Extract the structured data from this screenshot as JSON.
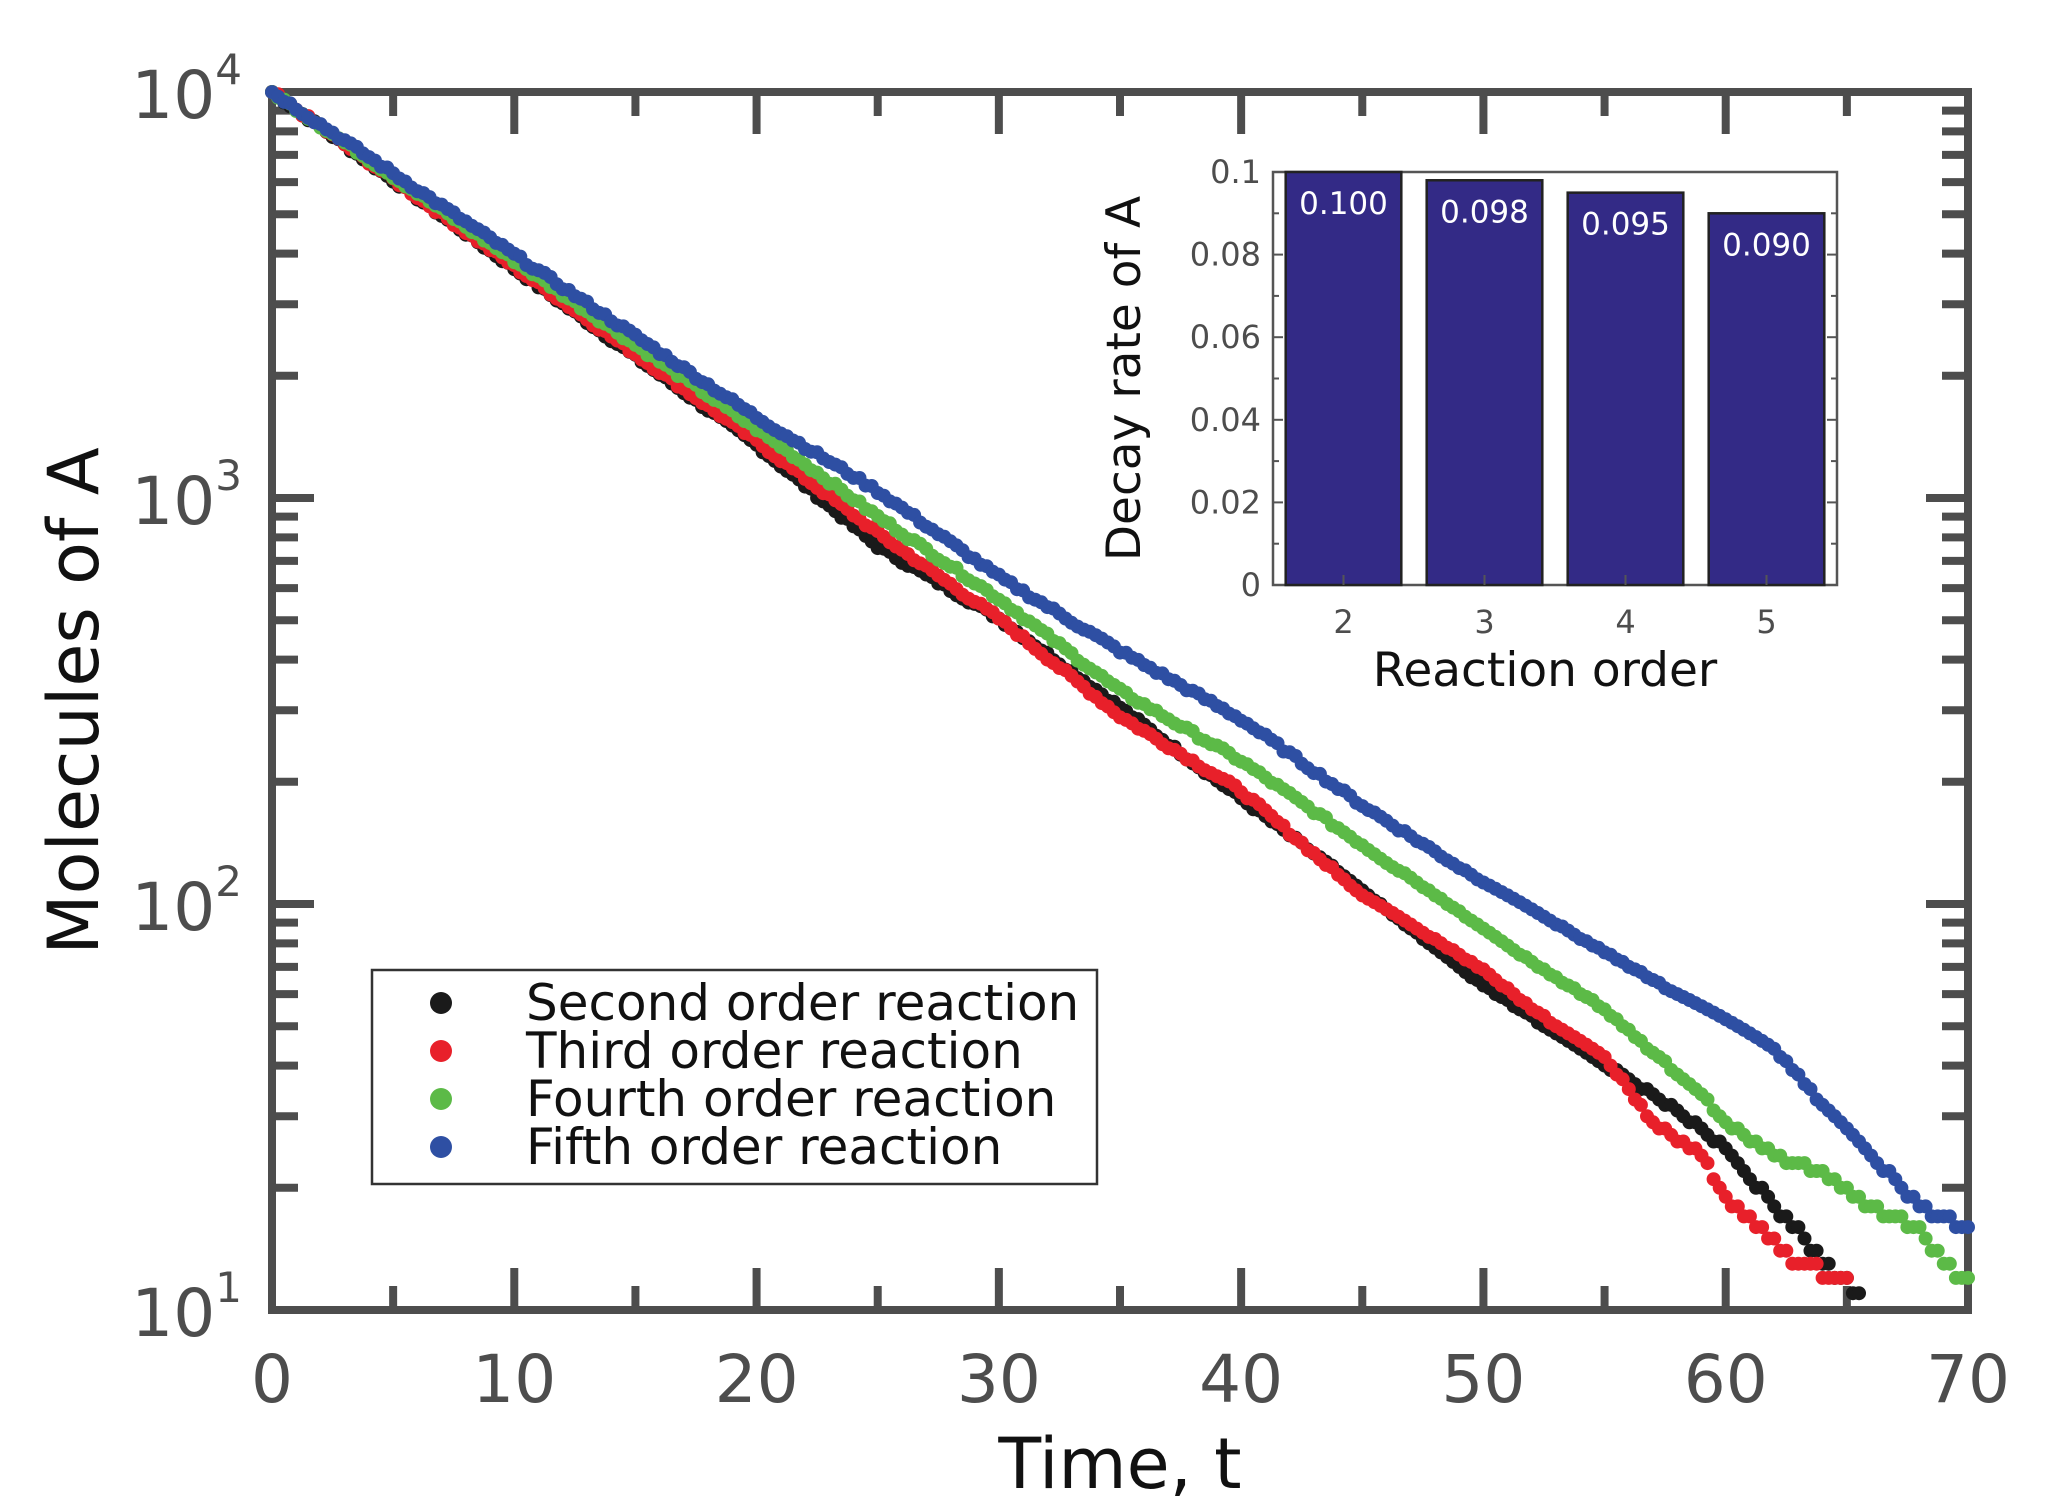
{
  "chart_data": [
    {
      "type": "scatter",
      "xlabel": "Time, t",
      "ylabel": "Molecules of A",
      "xlim": [
        0,
        70
      ],
      "ylim": [
        10,
        10000
      ],
      "yscale": "log",
      "xticks": [
        "0",
        "10",
        "20",
        "30",
        "40",
        "50",
        "60",
        "70"
      ],
      "yticks": [
        {
          "base": "10",
          "exp": "1"
        },
        {
          "base": "10",
          "exp": "2"
        },
        {
          "base": "10",
          "exp": "3"
        },
        {
          "base": "10",
          "exp": "4"
        }
      ],
      "legend": {
        "position": "bottom-left",
        "entries": [
          "Second order reaction",
          "Third order reaction",
          "Fourth order reaction",
          "Fifth order reaction"
        ]
      },
      "series": [
        {
          "name": "Second order reaction",
          "color": "#1a1a1a",
          "rate": 0.1,
          "t_end": 65.5,
          "anchors": [
            [
              0,
              10000
            ],
            [
              20,
              1350
            ],
            [
              25,
              760
            ],
            [
              30,
              505
            ],
            [
              35,
              305
            ],
            [
              40,
              182
            ],
            [
              45,
              108
            ],
            [
              50,
              63
            ],
            [
              53,
              48
            ],
            [
              56,
              37
            ],
            [
              58,
              31
            ],
            [
              60,
              25
            ],
            [
              62,
              18
            ],
            [
              63,
              16
            ],
            [
              64,
              13
            ],
            [
              65.5,
              11
            ]
          ]
        },
        {
          "name": "Third order reaction",
          "color": "#e8202a",
          "rate": 0.098,
          "t_end": 65.0,
          "anchors": [
            [
              0,
              10000
            ],
            [
              20,
              1380
            ],
            [
              25,
              820
            ],
            [
              30,
              505
            ],
            [
              35,
              290
            ],
            [
              40,
              190
            ],
            [
              45,
              105
            ],
            [
              50,
              69
            ],
            [
              52,
              55
            ],
            [
              55,
              42
            ],
            [
              57,
              29
            ],
            [
              59,
              24
            ],
            [
              60,
              19
            ],
            [
              61,
              17
            ],
            [
              63,
              13
            ],
            [
              65,
              12
            ]
          ]
        },
        {
          "name": "Fourth order reaction",
          "color": "#5cba47",
          "rate": 0.095,
          "t_end": 70.0,
          "anchors": [
            [
              0,
              10000
            ],
            [
              20,
              1480
            ],
            [
              25,
              900
            ],
            [
              30,
              565
            ],
            [
              35,
              335
            ],
            [
              40,
              225
            ],
            [
              45,
              140
            ],
            [
              50,
              87
            ],
            [
              52,
              72
            ],
            [
              55,
              55
            ],
            [
              57,
              43
            ],
            [
              59,
              34
            ],
            [
              60,
              29
            ],
            [
              62,
              24
            ],
            [
              64,
              22
            ],
            [
              66,
              18
            ],
            [
              68,
              16
            ],
            [
              69,
              13
            ],
            [
              70,
              12
            ]
          ]
        },
        {
          "name": "Fifth order reaction",
          "color": "#2e4fa3",
          "rate": 0.09,
          "t_end": 70.0,
          "anchors": [
            [
              0,
              10000
            ],
            [
              20,
              1580
            ],
            [
              25,
              1040
            ],
            [
              30,
              640
            ],
            [
              35,
              420
            ],
            [
              40,
              285
            ],
            [
              45,
              175
            ],
            [
              50,
              113
            ],
            [
              52,
              97
            ],
            [
              55,
              76
            ],
            [
              58,
              60
            ],
            [
              60,
              52
            ],
            [
              62,
              44
            ],
            [
              64,
              32
            ],
            [
              66,
              24
            ],
            [
              68,
              18
            ],
            [
              69,
              17
            ],
            [
              70,
              16
            ]
          ]
        }
      ]
    },
    {
      "type": "bar",
      "title": "",
      "xlabel": "Reaction order",
      "ylabel": "Decay rate of A",
      "ylim": [
        0,
        0.1
      ],
      "categories": [
        "2",
        "3",
        "4",
        "5"
      ],
      "values": [
        0.1,
        0.098,
        0.095,
        0.09
      ],
      "labels": [
        "0.100",
        "0.098",
        "0.095",
        "0.090"
      ],
      "yticks": [
        "0",
        "0.02",
        "0.04",
        "0.06",
        "0.08",
        "0.1"
      ],
      "bar_color": "#332a86"
    }
  ]
}
